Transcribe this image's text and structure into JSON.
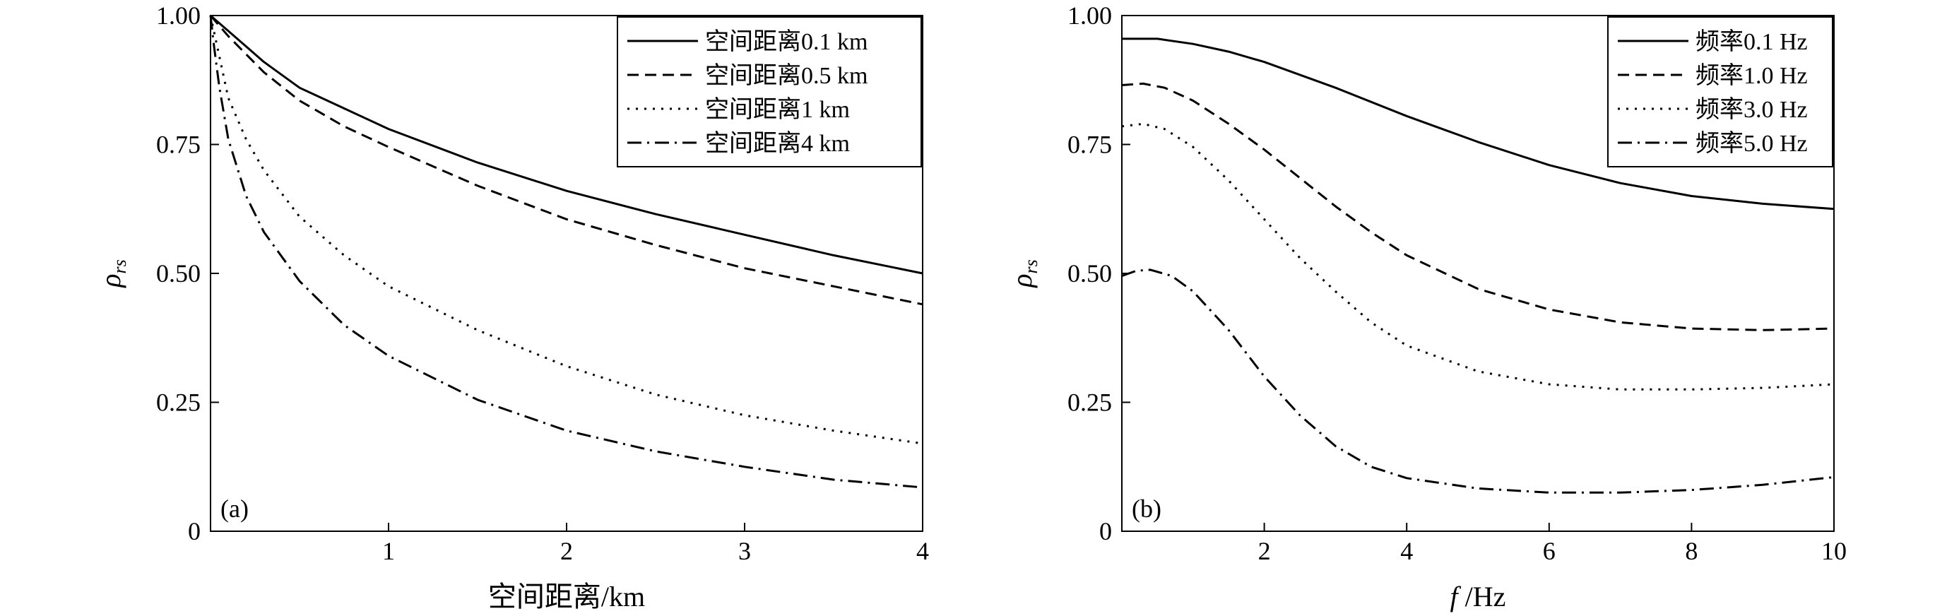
{
  "chart_data": [
    {
      "type": "line",
      "panel_label": "(a)",
      "title": "",
      "xlabel": "空间距离/km",
      "ylabel": "ρ",
      "ylabel_sub": "rs",
      "xlim": [
        0,
        4
      ],
      "ylim": [
        0,
        1
      ],
      "x_ticks": [
        1,
        2,
        3,
        4
      ],
      "y_ticks": [
        0,
        0.25,
        0.5,
        0.75,
        1.0
      ],
      "x_tick_labels": [
        "1",
        "2",
        "3",
        "4"
      ],
      "y_tick_labels": [
        "0",
        "0.25",
        "0.50",
        "0.75",
        "1.00"
      ],
      "grid": false,
      "legend_position": "top-right",
      "series": [
        {
          "name": "空间距离0.1 km",
          "style": "solid",
          "x": [
            0,
            0.05,
            0.1,
            0.2,
            0.3,
            0.5,
            0.75,
            1.0,
            1.5,
            2.0,
            2.5,
            3.0,
            3.5,
            4.0
          ],
          "y": [
            1.0,
            0.985,
            0.97,
            0.94,
            0.91,
            0.86,
            0.82,
            0.78,
            0.715,
            0.66,
            0.615,
            0.575,
            0.535,
            0.5
          ]
        },
        {
          "name": "空间距离0.5 km",
          "style": "dashed",
          "x": [
            0,
            0.05,
            0.1,
            0.2,
            0.3,
            0.5,
            0.75,
            1.0,
            1.5,
            2.0,
            2.5,
            3.0,
            3.5,
            4.0
          ],
          "y": [
            1.0,
            0.98,
            0.96,
            0.925,
            0.89,
            0.835,
            0.785,
            0.745,
            0.67,
            0.605,
            0.555,
            0.51,
            0.475,
            0.44
          ]
        },
        {
          "name": "空间距离1 km",
          "style": "dotted",
          "x": [
            0,
            0.05,
            0.1,
            0.2,
            0.3,
            0.5,
            0.75,
            1.0,
            1.5,
            2.0,
            2.5,
            3.0,
            3.5,
            4.0
          ],
          "y": [
            1.0,
            0.92,
            0.84,
            0.76,
            0.7,
            0.61,
            0.535,
            0.475,
            0.39,
            0.32,
            0.265,
            0.225,
            0.195,
            0.17
          ]
        },
        {
          "name": "空间距离4 km",
          "style": "dashdot",
          "x": [
            0,
            0.02,
            0.05,
            0.1,
            0.2,
            0.3,
            0.5,
            0.75,
            1.0,
            1.5,
            2.0,
            2.5,
            3.0,
            3.5,
            4.0
          ],
          "y": [
            1.0,
            0.94,
            0.86,
            0.76,
            0.65,
            0.58,
            0.485,
            0.4,
            0.34,
            0.255,
            0.195,
            0.155,
            0.125,
            0.1,
            0.085
          ]
        }
      ]
    },
    {
      "type": "line",
      "panel_label": "(b)",
      "title": "",
      "xlabel": "f /Hz",
      "ylabel": "ρ",
      "ylabel_sub": "rs",
      "xlim": [
        0,
        10
      ],
      "ylim": [
        0,
        1
      ],
      "x_ticks": [
        2,
        4,
        6,
        8,
        10
      ],
      "y_ticks": [
        0,
        0.25,
        0.5,
        0.75,
        1.0
      ],
      "x_tick_labels": [
        "2",
        "4",
        "6",
        "8",
        "10"
      ],
      "y_tick_labels": [
        "0",
        "0.25",
        "0.50",
        "0.75",
        "1.00"
      ],
      "grid": false,
      "legend_position": "top-right",
      "series": [
        {
          "name": "频率0.1 Hz",
          "style": "solid",
          "x": [
            0,
            0.5,
            1,
            1.5,
            2,
            3,
            4,
            5,
            6,
            7,
            8,
            9,
            10
          ],
          "y": [
            0.955,
            0.955,
            0.945,
            0.93,
            0.91,
            0.86,
            0.805,
            0.755,
            0.71,
            0.675,
            0.65,
            0.635,
            0.625
          ]
        },
        {
          "name": "频率1.0 Hz",
          "style": "dashed",
          "x": [
            0,
            0.3,
            0.6,
            1,
            1.5,
            2,
            2.5,
            3,
            3.5,
            4,
            5,
            6,
            7,
            8,
            9,
            10
          ],
          "y": [
            0.865,
            0.868,
            0.86,
            0.835,
            0.79,
            0.74,
            0.685,
            0.63,
            0.58,
            0.535,
            0.47,
            0.43,
            0.405,
            0.393,
            0.39,
            0.393
          ]
        },
        {
          "name": "频率3.0 Hz",
          "style": "dotted",
          "x": [
            0,
            0.3,
            0.6,
            1,
            1.5,
            2,
            2.5,
            3,
            3.5,
            4,
            5,
            6,
            7,
            8,
            9,
            10
          ],
          "y": [
            0.785,
            0.79,
            0.78,
            0.745,
            0.68,
            0.605,
            0.53,
            0.465,
            0.405,
            0.36,
            0.31,
            0.285,
            0.275,
            0.275,
            0.278,
            0.285
          ]
        },
        {
          "name": "频率5.0 Hz",
          "style": "dashdot",
          "x": [
            0,
            0.2,
            0.4,
            0.7,
            1,
            1.5,
            2,
            2.5,
            3,
            3.5,
            4,
            5,
            6,
            7,
            8,
            9,
            10
          ],
          "y": [
            0.495,
            0.505,
            0.507,
            0.495,
            0.465,
            0.39,
            0.3,
            0.225,
            0.165,
            0.125,
            0.103,
            0.083,
            0.075,
            0.075,
            0.08,
            0.09,
            0.105
          ]
        }
      ]
    }
  ]
}
